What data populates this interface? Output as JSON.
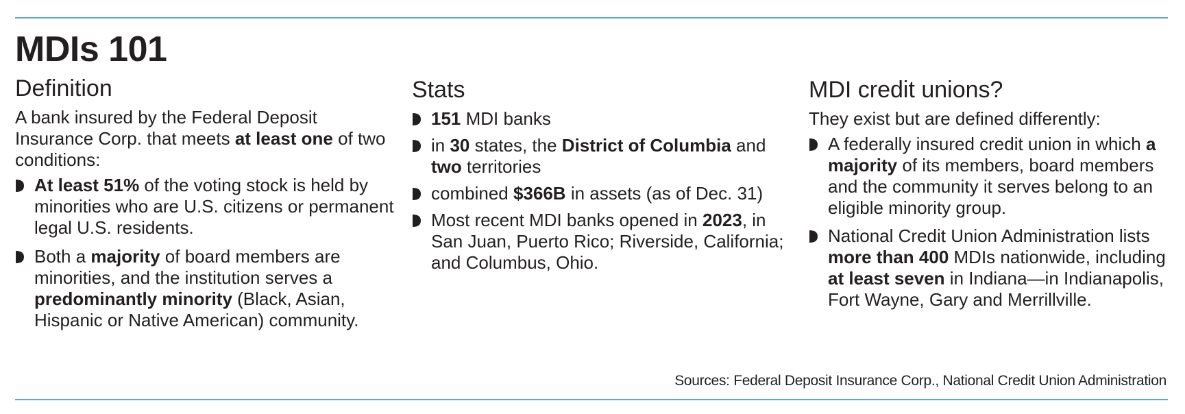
{
  "title": "MDIs 101",
  "colors": {
    "rule": "#5aa7d6",
    "text": "#231f20"
  },
  "definition": {
    "heading": "Definition",
    "intro": {
      "t1": "A bank insured by the Federal Deposit Insurance Corp. that meets ",
      "b1": "at least one",
      "t2": " of two conditions:"
    },
    "bullets": [
      {
        "b1": "At least 51%",
        "t1": " of the voting stock is held by minorities who are U.S. citizens or permanent legal U.S. residents."
      },
      {
        "t1": "Both a ",
        "b1": "majority",
        "t2": " of board members are minorities, and the institution serves a ",
        "b2": "predominantly minority",
        "t3": " (Black, Asian, Hispanic or Native American) community."
      }
    ]
  },
  "stats": {
    "heading": "Stats",
    "bullets": [
      {
        "b1": "151",
        "t1": " MDI banks"
      },
      {
        "t1": "in ",
        "b1": "30",
        "t2": " states, the ",
        "b2": "District of Columbia",
        "t3": " and ",
        "b3": "two",
        "t4": " territories"
      },
      {
        "t1": "combined ",
        "b1": "$366B",
        "t2": " in assets (as of Dec. 31)"
      },
      {
        "t1": "Most recent MDI banks opened in ",
        "b1": "2023",
        "t2": ", in San Juan, Puerto Rico; Riverside, California; and Columbus, Ohio."
      }
    ]
  },
  "credit_unions": {
    "heading": "MDI credit unions?",
    "intro": "They exist but are defined differently:",
    "bullets": [
      {
        "t1": "A federally insured credit union in which ",
        "b1": "a majority",
        "t2": " of its members, board members and the community it serves belong to an eligible minority group."
      },
      {
        "t1": "National Credit Union Administration lists ",
        "b1": "more than 400",
        "t2": " MDIs nationwide, including ",
        "b2": "at least seven",
        "t3": " in Indiana—in Indianapolis, Fort Wayne, Gary and Merrillville."
      }
    ]
  },
  "sources": "Sources: Federal Deposit Insurance Corp., National Credit Union Administration",
  "icons": {
    "bullet": "half-circle-bullet-icon"
  }
}
